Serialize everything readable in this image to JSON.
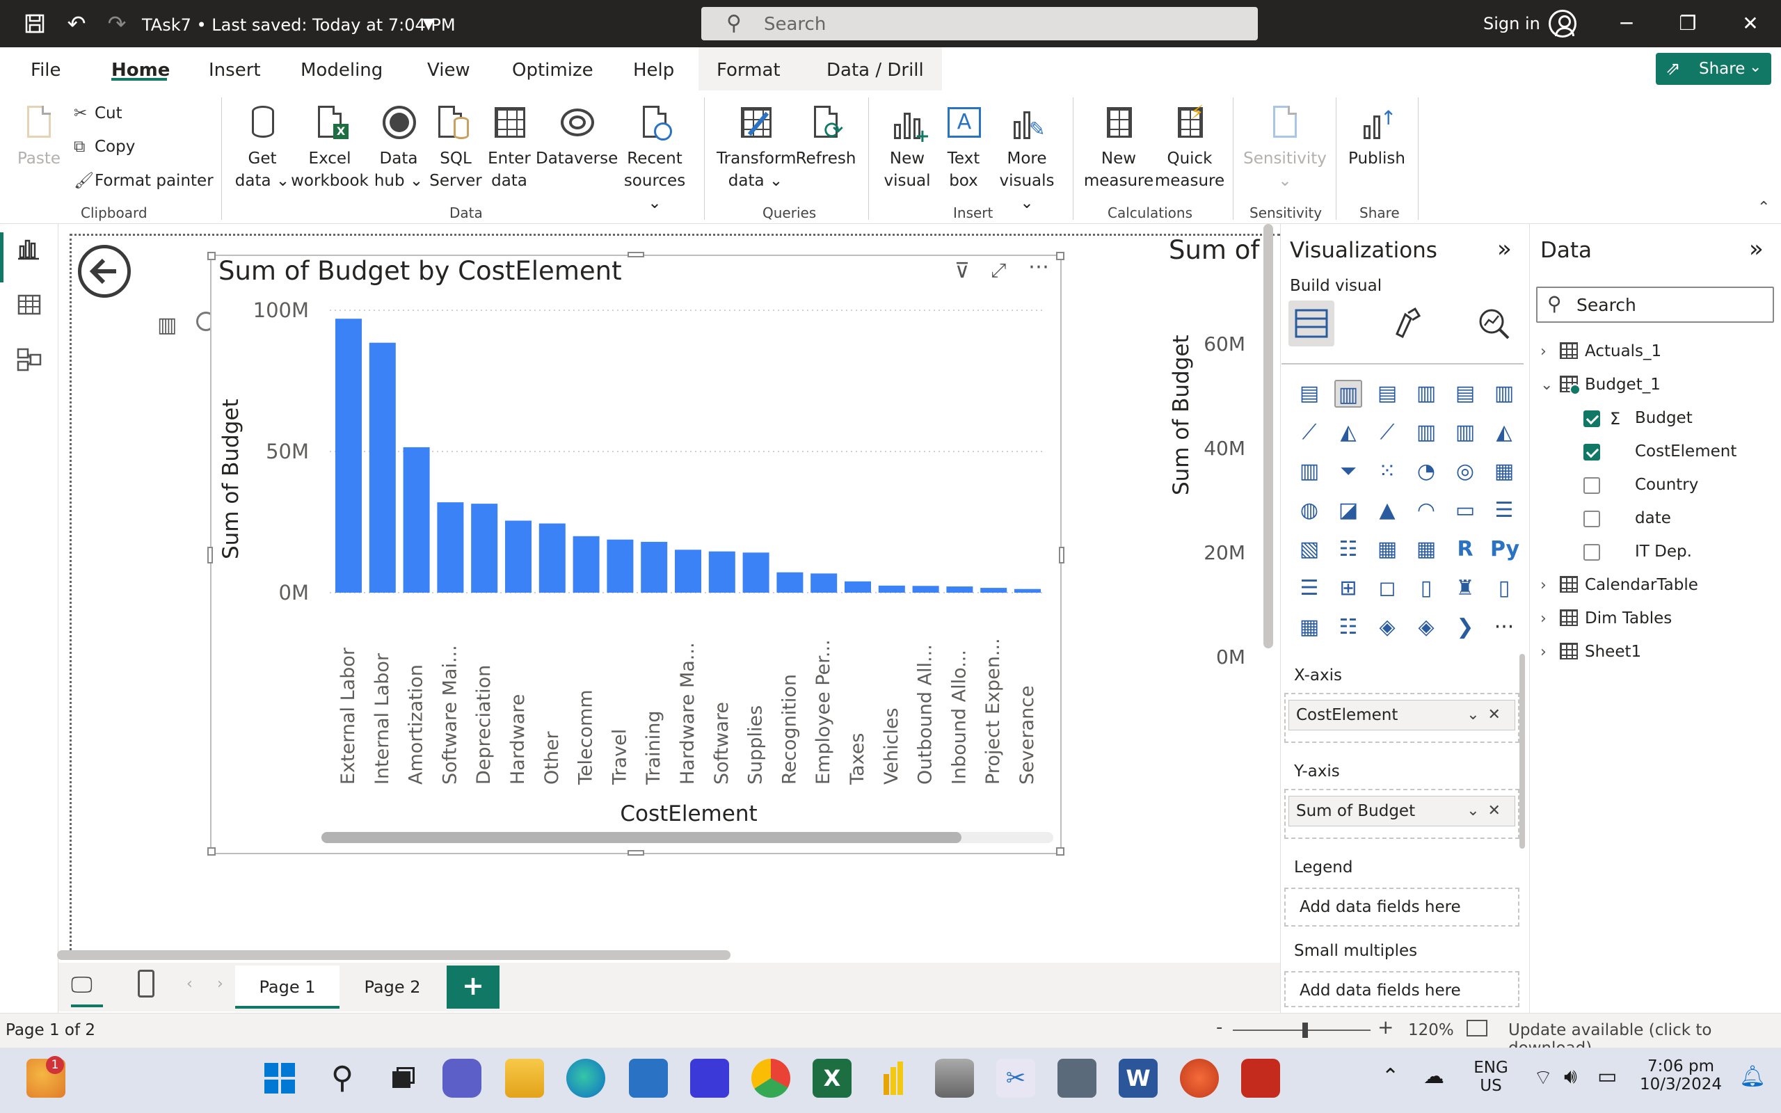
{
  "titlebar": {
    "document_title": "TAsk7  •  Last saved: Today at 7:04 PM",
    "search_placeholder": "Search",
    "sign_in": "Sign in"
  },
  "menu": {
    "tabs": [
      "File",
      "Home",
      "Insert",
      "Modeling",
      "View",
      "Optimize",
      "Help",
      "Format",
      "Data / Drill"
    ],
    "active": "Home",
    "share_label": "Share"
  },
  "ribbon": {
    "clipboard": {
      "paste": "Paste",
      "cut": "Cut",
      "copy": "Copy",
      "format_painter": "Format painter",
      "label": "Clipboard"
    },
    "data": {
      "get_data": [
        "Get",
        "data"
      ],
      "excel": [
        "Excel",
        "workbook"
      ],
      "data_hub": [
        "Data",
        "hub"
      ],
      "sql": [
        "SQL",
        "Server"
      ],
      "enter": [
        "Enter",
        "data"
      ],
      "dataverse": "Dataverse",
      "recent": [
        "Recent",
        "sources"
      ],
      "label": "Data"
    },
    "queries": {
      "transform": [
        "Transform",
        "data"
      ],
      "refresh": "Refresh",
      "label": "Queries"
    },
    "insert": {
      "new_visual": [
        "New",
        "visual"
      ],
      "text_box": [
        "Text",
        "box"
      ],
      "more_visuals": [
        "More",
        "visuals"
      ],
      "label": "Insert"
    },
    "calculations": {
      "new_measure": [
        "New",
        "measure"
      ],
      "quick_measure": [
        "Quick",
        "measure"
      ],
      "label": "Calculations"
    },
    "sensitivity": {
      "button": "Sensitivity",
      "label": "Sensitivity"
    },
    "share": {
      "publish": "Publish",
      "label": "Share"
    }
  },
  "chart_data": {
    "type": "bar",
    "title": "Sum of Budget by CostElement",
    "xlabel": "CostElement",
    "ylabel": "Sum of Budget",
    "ylim": [
      0,
      100000000
    ],
    "yticks": [
      {
        "value": 0,
        "label": "0M"
      },
      {
        "value": 50000000,
        "label": "50M"
      },
      {
        "value": 100000000,
        "label": "100M"
      }
    ],
    "color": "#3b82f6",
    "categories": [
      "External Labor",
      "Internal Labor",
      "Amortization",
      "Software Mai...",
      "Depreciation",
      "Hardware",
      "Other",
      "Telecomm",
      "Travel",
      "Training",
      "Hardware Ma...",
      "Software",
      "Supplies",
      "Recognition",
      "Employee Per...",
      "Taxes",
      "Vehicles",
      "Outbound All...",
      "Inbound Allo...",
      "Project Expen...",
      "Severance"
    ],
    "values": [
      97000000,
      88500000,
      51500000,
      32000000,
      31500000,
      25500000,
      24500000,
      20000000,
      18800000,
      18000000,
      15200000,
      14600000,
      14200000,
      7200000,
      6800000,
      4000000,
      2500000,
      2400000,
      2200000,
      1700000,
      1300000
    ],
    "grid": true
  },
  "chart2": {
    "title_partial": "Sum of",
    "ylabel": "Sum of Budget",
    "ticks": [
      "60M",
      "40M",
      "20M",
      "0M"
    ]
  },
  "pages": {
    "tabs": [
      "Page 1",
      "Page 2"
    ],
    "add": "+"
  },
  "visualizations": {
    "title": "Visualizations",
    "build_visual": "Build visual",
    "x_axis": {
      "label": "X-axis",
      "field": "CostElement"
    },
    "y_axis": {
      "label": "Y-axis",
      "field": "Sum of Budget"
    },
    "legend": {
      "label": "Legend",
      "placeholder": "Add data fields here"
    },
    "small_multiples": {
      "label": "Small multiples",
      "placeholder": "Add data fields here"
    },
    "r_label": "R",
    "py_label": "Py",
    "more": "···"
  },
  "data_pane": {
    "title": "Data",
    "search_placeholder": "Search",
    "tables": [
      "Actuals_1",
      "Budget_1",
      "CalendarTable",
      "Dim Tables",
      "Sheet1"
    ],
    "budget_fields": [
      {
        "name": "Budget",
        "checked": true,
        "sigma": true
      },
      {
        "name": "CostElement",
        "checked": true
      },
      {
        "name": "Country",
        "checked": false
      },
      {
        "name": "date",
        "checked": false
      },
      {
        "name": "IT Dep.",
        "checked": false
      }
    ]
  },
  "status": {
    "page": "Page 1 of 2",
    "zoom": "120%",
    "update": "Update available (click to download)"
  },
  "taskbar": {
    "weather_badge": "1",
    "lang": [
      "ENG",
      "US"
    ],
    "time": "7:06 pm",
    "date": "10/3/2024"
  }
}
